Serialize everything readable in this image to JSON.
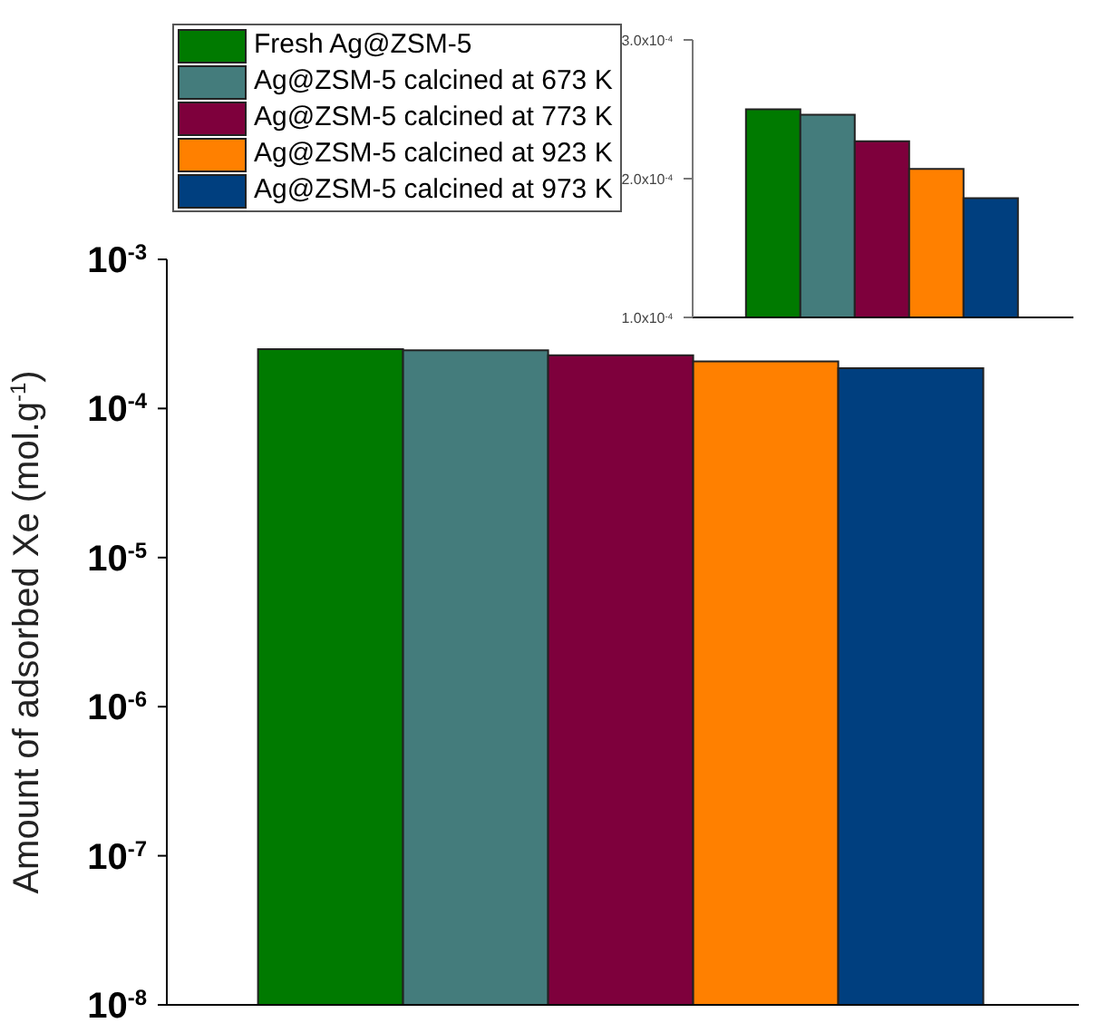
{
  "chart_data": [
    {
      "type": "bar",
      "ylabel": "Amount of adsorbed Xe (mol.g$^{-1}$)",
      "categories": [
        null
      ],
      "log": true,
      "ylim": [
        1e-08,
        0.001
      ],
      "yticks": [
        {
          "value": 1e-08,
          "label": "10$^{-8}$"
        },
        {
          "value": 1e-07,
          "label": "10$^{-7}$"
        },
        {
          "value": 1e-06,
          "label": "10$^{-6}$"
        },
        {
          "value": 1e-05,
          "label": "10$^{-5}$"
        },
        {
          "value": 0.0001,
          "label": "10$^{-4}$"
        },
        {
          "value": 0.001,
          "label": "10$^{-3}$"
        }
      ],
      "tick_labels": "y",
      "legend": "top",
      "grid": false,
      "series": [
        {
          "name": "Fresh Ag@ZSM-5",
          "color": "#007a00",
          "values": [
            0.00025
          ]
        },
        {
          "name": "Ag@ZSM-5 calcined at 673 K",
          "color": "#447c7c",
          "values": [
            0.000246
          ]
        },
        {
          "name": "Ag@ZSM-5 calcined at 773 K",
          "color": "#7e003c",
          "values": [
            0.000227
          ]
        },
        {
          "name": "Ag@ZSM-5 calcined at 923 K",
          "color": "#ff8000",
          "values": [
            0.000207
          ]
        },
        {
          "name": "Ag@ZSM-5 calcined at 973 K",
          "color": "#003f7f",
          "values": [
            0.000186
          ]
        }
      ]
    },
    {
      "type": "bar",
      "categories": [
        null
      ],
      "ylim": [
        0.0001,
        0.0003
      ],
      "yticks": [
        {
          "value": 0.0001,
          "label": "1.0x10$^{-4}$"
        },
        {
          "value": 0.0002,
          "label": "2.0x10$^{-4}$"
        },
        {
          "value": 0.0003,
          "label": "3.0x10$^{-4}$"
        }
      ],
      "tick_labels": "y",
      "grid": false,
      "series": [
        {
          "color": "#007a00",
          "values": [
            0.00025
          ]
        },
        {
          "color": "#447c7c",
          "values": [
            0.000246
          ]
        },
        {
          "color": "#7e003c",
          "values": [
            0.000227
          ]
        },
        {
          "color": "#ff8000",
          "values": [
            0.000207
          ]
        },
        {
          "color": "#003f7f",
          "values": [
            0.000186
          ]
        }
      ]
    }
  ]
}
